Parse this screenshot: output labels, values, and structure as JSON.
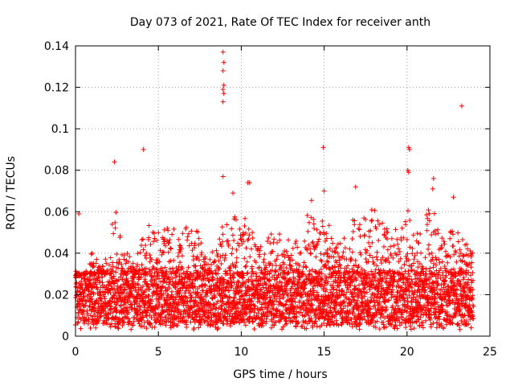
{
  "chart_data": {
    "type": "scatter",
    "title": "Day 073 of 2021, Rate Of TEC Index for receiver anth",
    "xlabel": "GPS time / hours",
    "ylabel": "ROTI / TECUs",
    "xlim": [
      0,
      25
    ],
    "ylim": [
      0,
      0.14
    ],
    "xticks": [
      0,
      5,
      10,
      15,
      20,
      25
    ],
    "yticks": [
      0,
      0.02,
      0.04,
      0.06,
      0.08,
      0.1,
      0.12,
      0.14
    ],
    "ytick_labels": [
      "0",
      "0.02",
      "0.04",
      "0.06",
      "0.08",
      "0.1",
      "0.12",
      "0.14"
    ],
    "grid": true,
    "marker": "+",
    "color": "#ff0000",
    "outliers": [
      {
        "x": 8.9,
        "y": 0.137
      },
      {
        "x": 8.95,
        "y": 0.132
      },
      {
        "x": 8.9,
        "y": 0.128
      },
      {
        "x": 8.95,
        "y": 0.121
      },
      {
        "x": 8.9,
        "y": 0.119
      },
      {
        "x": 8.95,
        "y": 0.117
      },
      {
        "x": 8.9,
        "y": 0.113
      },
      {
        "x": 23.3,
        "y": 0.111
      },
      {
        "x": 4.1,
        "y": 0.09
      },
      {
        "x": 14.95,
        "y": 0.091
      },
      {
        "x": 20.1,
        "y": 0.091
      },
      {
        "x": 20.15,
        "y": 0.09
      },
      {
        "x": 2.35,
        "y": 0.084
      },
      {
        "x": 20.05,
        "y": 0.08
      },
      {
        "x": 20.1,
        "y": 0.079
      },
      {
        "x": 8.9,
        "y": 0.077
      },
      {
        "x": 21.6,
        "y": 0.076
      },
      {
        "x": 10.4,
        "y": 0.074
      },
      {
        "x": 10.5,
        "y": 0.074
      },
      {
        "x": 16.9,
        "y": 0.072
      },
      {
        "x": 9.5,
        "y": 0.069
      },
      {
        "x": 15.0,
        "y": 0.07
      },
      {
        "x": 21.55,
        "y": 0.071
      },
      {
        "x": 22.8,
        "y": 0.067
      },
      {
        "x": 0.2,
        "y": 0.059
      }
    ],
    "envelope": [
      {
        "x": 0,
        "upper": 0.028
      },
      {
        "x": 0.5,
        "upper": 0.03
      },
      {
        "x": 1,
        "upper": 0.042
      },
      {
        "x": 1.5,
        "upper": 0.035
      },
      {
        "x": 2,
        "upper": 0.04
      },
      {
        "x": 2.3,
        "upper": 0.064
      },
      {
        "x": 2.6,
        "upper": 0.055
      },
      {
        "x": 3,
        "upper": 0.04
      },
      {
        "x": 3.5,
        "upper": 0.04
      },
      {
        "x": 4,
        "upper": 0.047
      },
      {
        "x": 4.5,
        "upper": 0.055
      },
      {
        "x": 5,
        "upper": 0.05
      },
      {
        "x": 5.5,
        "upper": 0.052
      },
      {
        "x": 5.8,
        "upper": 0.069
      },
      {
        "x": 6.2,
        "upper": 0.05
      },
      {
        "x": 6.5,
        "upper": 0.052
      },
      {
        "x": 7,
        "upper": 0.055
      },
      {
        "x": 7.5,
        "upper": 0.05
      },
      {
        "x": 8,
        "upper": 0.04
      },
      {
        "x": 8.5,
        "upper": 0.042
      },
      {
        "x": 9,
        "upper": 0.06
      },
      {
        "x": 9.5,
        "upper": 0.068
      },
      {
        "x": 10,
        "upper": 0.05
      },
      {
        "x": 10.5,
        "upper": 0.067
      },
      {
        "x": 11,
        "upper": 0.043
      },
      {
        "x": 11.5,
        "upper": 0.045
      },
      {
        "x": 12,
        "upper": 0.06
      },
      {
        "x": 12.5,
        "upper": 0.05
      },
      {
        "x": 13,
        "upper": 0.045
      },
      {
        "x": 13.5,
        "upper": 0.05
      },
      {
        "x": 14,
        "upper": 0.062
      },
      {
        "x": 14.3,
        "upper": 0.068
      },
      {
        "x": 14.7,
        "upper": 0.05
      },
      {
        "x": 15,
        "upper": 0.06
      },
      {
        "x": 15.5,
        "upper": 0.05
      },
      {
        "x": 16,
        "upper": 0.048
      },
      {
        "x": 16.5,
        "upper": 0.05
      },
      {
        "x": 17,
        "upper": 0.064
      },
      {
        "x": 17.5,
        "upper": 0.058
      },
      {
        "x": 18,
        "upper": 0.065
      },
      {
        "x": 18.5,
        "upper": 0.057
      },
      {
        "x": 19,
        "upper": 0.055
      },
      {
        "x": 19.5,
        "upper": 0.05
      },
      {
        "x": 20,
        "upper": 0.067
      },
      {
        "x": 20.5,
        "upper": 0.05
      },
      {
        "x": 21,
        "upper": 0.055
      },
      {
        "x": 21.5,
        "upper": 0.067
      },
      {
        "x": 22,
        "upper": 0.05
      },
      {
        "x": 22.5,
        "upper": 0.05
      },
      {
        "x": 23,
        "upper": 0.052
      },
      {
        "x": 23.5,
        "upper": 0.045
      },
      {
        "x": 24,
        "upper": 0.043
      }
    ],
    "baseline_range": [
      0.005,
      0.03
    ]
  }
}
